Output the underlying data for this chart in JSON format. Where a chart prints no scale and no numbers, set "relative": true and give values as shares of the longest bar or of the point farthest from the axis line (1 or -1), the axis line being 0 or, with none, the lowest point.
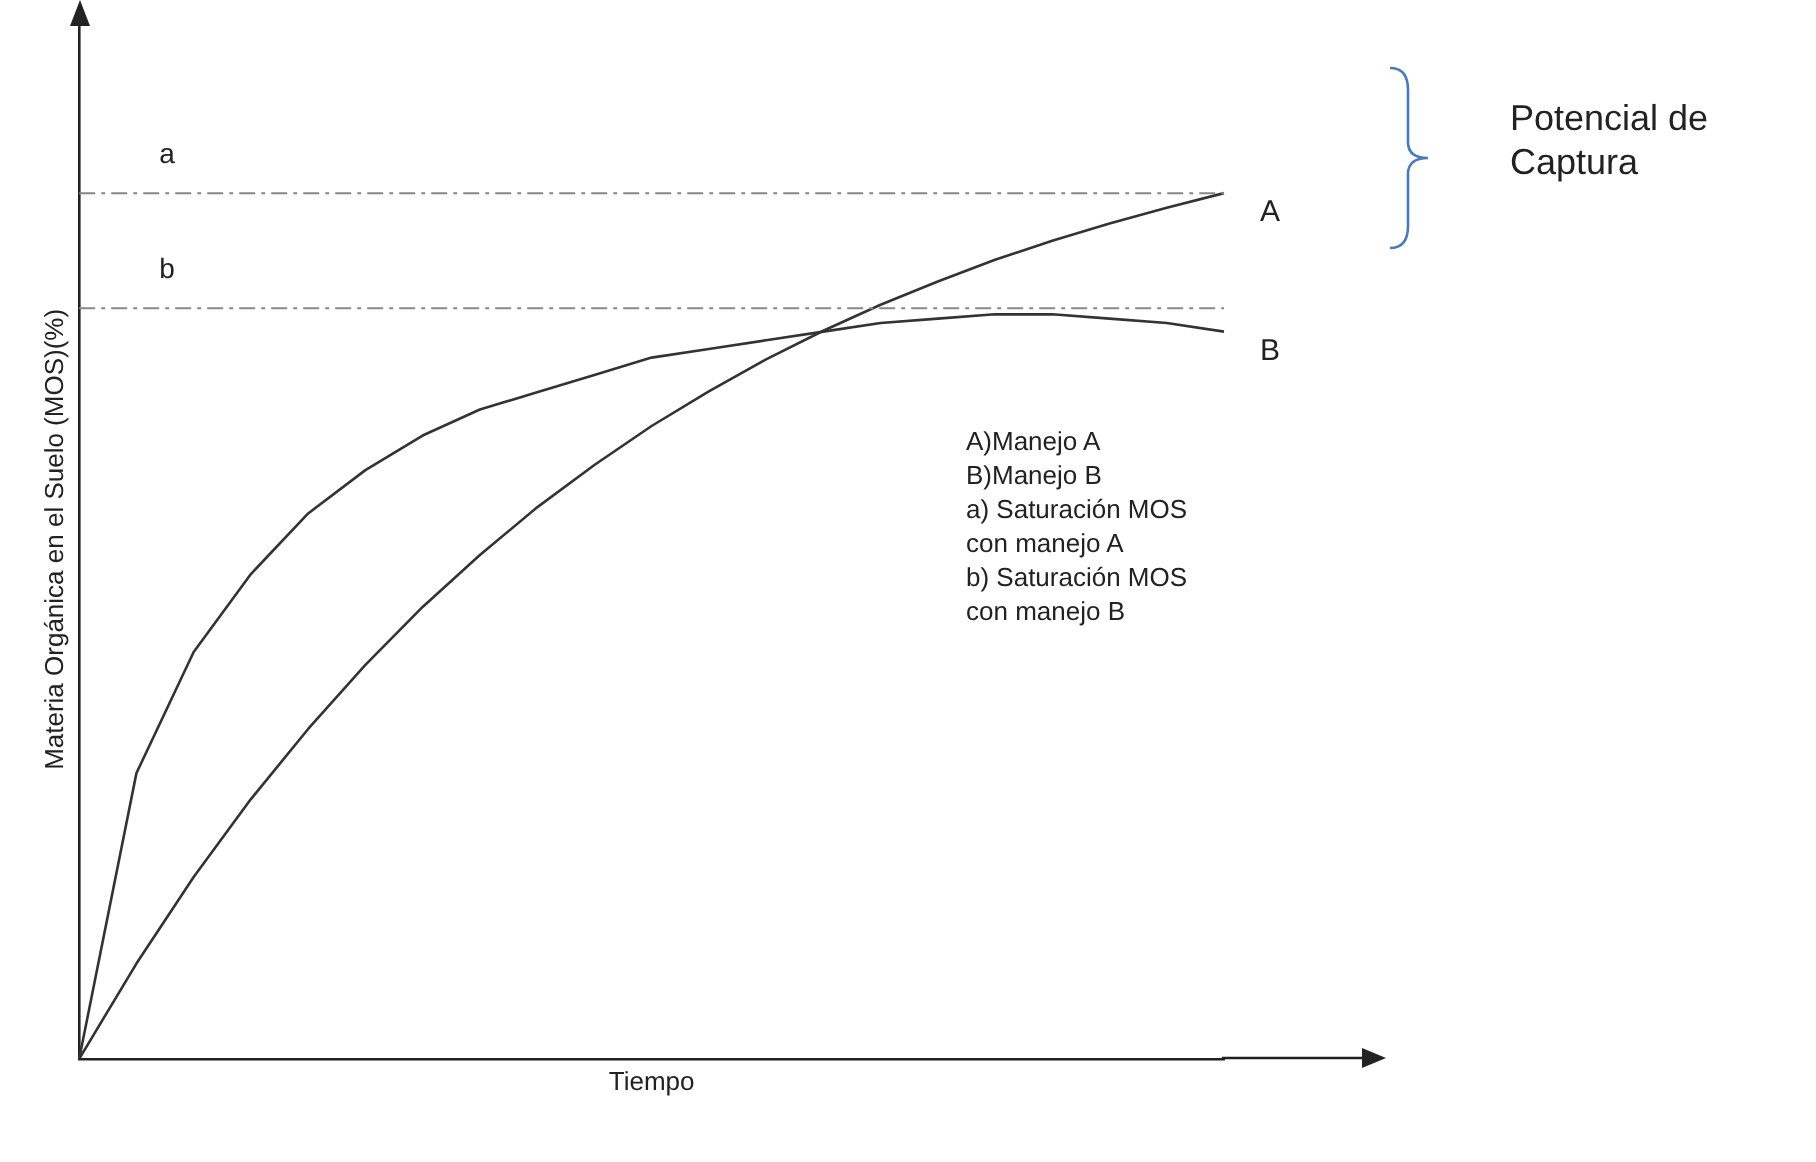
{
  "chart_data": {
    "type": "line",
    "relative": true,
    "xlabel": "Tiempo",
    "ylabel": "Materia Orgánica en el Suelo (MOS)(%)",
    "categories": [
      null,
      null,
      null,
      null,
      null,
      null,
      null,
      null,
      null,
      null,
      null,
      null,
      null,
      null,
      null,
      null,
      null,
      null,
      null,
      null,
      null
    ],
    "series": [
      {
        "name": "A",
        "color": "#333333",
        "values": [
          0,
          0.11,
          0.21,
          0.3,
          0.381,
          0.455,
          0.522,
          0.582,
          0.637,
          0.686,
          0.731,
          0.771,
          0.808,
          0.841,
          0.871,
          0.898,
          0.923,
          0.945,
          0.965,
          0.983,
          1
        ]
      },
      {
        "name": "B",
        "color": "#333333",
        "values": [
          0,
          0.33,
          0.47,
          0.56,
          0.63,
          0.68,
          0.72,
          0.75,
          0.77,
          0.79,
          0.81,
          0.82,
          0.83,
          0.84,
          0.85,
          0.855,
          0.86,
          0.86,
          0.855,
          0.85,
          0.84
        ]
      }
    ],
    "ref_lines": [
      {
        "axis": "y",
        "value": 1,
        "label": "a",
        "color": "#888888",
        "line_style": "dashed"
      },
      {
        "axis": "y",
        "value": 0.867,
        "label": "b",
        "color": "#888888",
        "line_style": "dashed"
      }
    ],
    "annotations": [
      "Potencial de Captura",
      "A)Manejo A",
      "B)Manejo B",
      "a) Saturación MOS con manejo A",
      "b) Saturación MOS con manejo B"
    ],
    "legend": false,
    "marker": "none",
    "line_style": "solid",
    "grid": false
  }
}
